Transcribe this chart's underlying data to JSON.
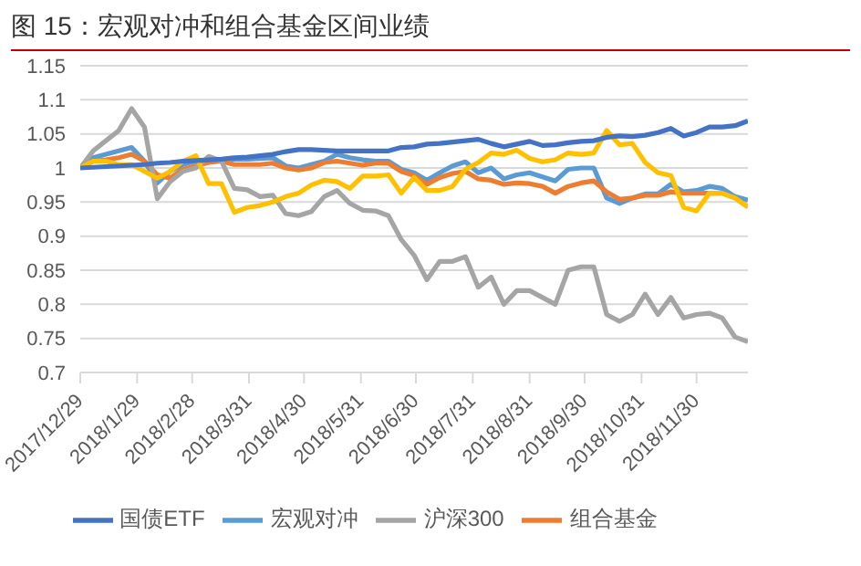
{
  "chart_data": {
    "type": "line",
    "title": "图 15：宏观对冲和组合基金区间业绩",
    "x": [
      "2017-12-29",
      "2018-01-05",
      "2018-01-12",
      "2018-01-19",
      "2018-01-26",
      "2018-02-02",
      "2018-02-09",
      "2018-02-16",
      "2018-02-23",
      "2018-03-02",
      "2018-03-09",
      "2018-03-16",
      "2018-03-23",
      "2018-03-30",
      "2018-04-06",
      "2018-04-13",
      "2018-04-20",
      "2018-04-27",
      "2018-05-04",
      "2018-05-11",
      "2018-05-18",
      "2018-05-25",
      "2018-06-01",
      "2018-06-08",
      "2018-06-15",
      "2018-06-22",
      "2018-06-29",
      "2018-07-06",
      "2018-07-13",
      "2018-07-20",
      "2018-07-27",
      "2018-08-03",
      "2018-08-10",
      "2018-08-17",
      "2018-08-24",
      "2018-08-31",
      "2018-09-07",
      "2018-09-14",
      "2018-09-21",
      "2018-09-28",
      "2018-10-05",
      "2018-10-12",
      "2018-10-19",
      "2018-10-26",
      "2018-11-02",
      "2018-11-09",
      "2018-11-16",
      "2018-11-23",
      "2018-11-30",
      "2018-12-07",
      "2018-12-14",
      "2018-12-21",
      "2018-12-28"
    ],
    "series": [
      {
        "name": "宏观对冲",
        "color": "#5b9bd5",
        "values": [
          1.0,
          1.015,
          1.02,
          1.025,
          1.03,
          1.01,
          0.978,
          0.995,
          1.005,
          1.01,
          1.01,
          1.012,
          1.013,
          1.013,
          1.014,
          1.015,
          1.003,
          1.0,
          1.005,
          1.01,
          1.02,
          1.015,
          1.012,
          1.01,
          1.01,
          0.998,
          0.993,
          0.982,
          0.993,
          1.003,
          1.009,
          0.993,
          1.0,
          0.984,
          0.99,
          0.993,
          0.987,
          0.981,
          0.998,
          1.0,
          1.0,
          0.956,
          0.948,
          0.956,
          0.962,
          0.962,
          0.976,
          0.965,
          0.967,
          0.973,
          0.97,
          0.958,
          0.953
        ]
      },
      {
        "name": "组合基金",
        "color": "#ed7d31",
        "values": [
          1.0,
          1.01,
          1.012,
          1.015,
          1.02,
          1.01,
          0.99,
          0.985,
          0.998,
          1.003,
          1.008,
          1.01,
          1.005,
          1.005,
          1.005,
          1.007,
          1.0,
          0.997,
          1.0,
          1.008,
          1.01,
          1.007,
          1.004,
          1.007,
          1.007,
          0.995,
          0.989,
          0.976,
          0.986,
          0.992,
          0.995,
          0.984,
          0.982,
          0.976,
          0.978,
          0.977,
          0.973,
          0.963,
          0.973,
          0.978,
          0.981,
          0.965,
          0.954,
          0.956,
          0.96,
          0.96,
          0.965,
          0.963,
          0.963,
          0.963,
          0.963,
          0.956,
          0.943
        ]
      },
      {
        "name": "沪深300",
        "color": "#a5a5a5",
        "values": [
          1.0,
          1.025,
          1.04,
          1.055,
          1.087,
          1.06,
          0.955,
          0.98,
          0.995,
          1.0,
          1.017,
          1.01,
          0.97,
          0.968,
          0.958,
          0.96,
          0.933,
          0.93,
          0.936,
          0.958,
          0.967,
          0.948,
          0.938,
          0.937,
          0.93,
          0.895,
          0.872,
          0.836,
          0.863,
          0.863,
          0.87,
          0.825,
          0.84,
          0.8,
          0.82,
          0.82,
          0.81,
          0.8,
          0.85,
          0.855,
          0.855,
          0.785,
          0.775,
          0.785,
          0.815,
          0.785,
          0.81,
          0.78,
          0.785,
          0.787,
          0.78,
          0.752,
          0.745
        ]
      },
      {
        "color": "#ffc000",
        "values": [
          1.0,
          1.01,
          1.01,
          1.005,
          1.005,
          0.995,
          0.985,
          0.995,
          1.01,
          1.018,
          0.977,
          0.977,
          0.935,
          0.942,
          0.945,
          0.95,
          0.958,
          0.963,
          0.975,
          0.982,
          0.98,
          0.97,
          0.988,
          0.988,
          0.99,
          0.963,
          0.986,
          0.967,
          0.967,
          0.973,
          0.998,
          1.008,
          1.022,
          1.02,
          1.026,
          1.014,
          1.009,
          1.012,
          1.022,
          1.02,
          1.022,
          1.055,
          1.034,
          1.036,
          1.008,
          0.993,
          0.989,
          0.942,
          0.937,
          0.963,
          0.963,
          0.956,
          0.943
        ]
      },
      {
        "name": "国债ETF",
        "color": "#4472c4",
        "values": [
          1.0,
          1.001,
          1.002,
          1.003,
          1.004,
          1.005,
          1.007,
          1.008,
          1.01,
          1.011,
          1.012,
          1.013,
          1.015,
          1.016,
          1.018,
          1.02,
          1.024,
          1.027,
          1.027,
          1.026,
          1.025,
          1.025,
          1.025,
          1.025,
          1.025,
          1.03,
          1.031,
          1.035,
          1.036,
          1.038,
          1.04,
          1.042,
          1.036,
          1.031,
          1.035,
          1.039,
          1.033,
          1.034,
          1.037,
          1.039,
          1.04,
          1.045,
          1.047,
          1.046,
          1.048,
          1.052,
          1.058,
          1.047,
          1.052,
          1.06,
          1.06,
          1.062,
          1.069
        ]
      }
    ],
    "xlim": [
      "2017-12-29",
      "2018-12-28"
    ],
    "xticks": [
      {
        "value": "2017-12-29",
        "label": "2017/12/29"
      },
      {
        "value": "2018-01-29",
        "label": "2018/1/29"
      },
      {
        "value": "2018-02-28",
        "label": "2018/2/28"
      },
      {
        "value": "2018-03-31",
        "label": "2018/3/31"
      },
      {
        "value": "2018-04-30",
        "label": "2018/4/30"
      },
      {
        "value": "2018-05-31",
        "label": "2018/5/31"
      },
      {
        "value": "2018-06-30",
        "label": "2018/6/30"
      },
      {
        "value": "2018-07-31",
        "label": "2018/7/31"
      },
      {
        "value": "2018-08-31",
        "label": "2018/8/31"
      },
      {
        "value": "2018-09-30",
        "label": "2018/9/30"
      },
      {
        "value": "2018-10-31",
        "label": "2018/10/31"
      },
      {
        "value": "2018-11-30",
        "label": "2018/11/30"
      }
    ],
    "ylim": [
      0.7,
      1.15
    ],
    "yticks": [
      0.7,
      0.75,
      0.8,
      0.85,
      0.9,
      0.95,
      1,
      1.05,
      1.1,
      1.15
    ],
    "grid": "y",
    "legend": "bottom",
    "marker": "none",
    "line_style": "solid"
  }
}
